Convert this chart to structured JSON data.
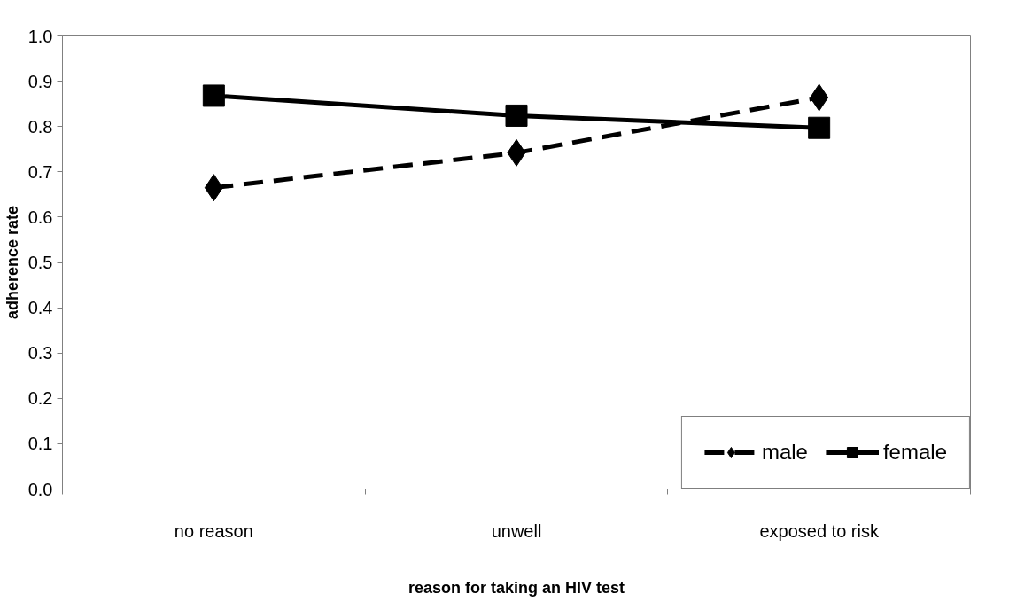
{
  "chart_data": {
    "type": "line",
    "xlabel": "reason for taking an HIV test",
    "ylabel": "adherence rate",
    "categories": [
      "no reason",
      "unwell",
      "exposed to risk"
    ],
    "series": [
      {
        "name": "male",
        "color": "#000000",
        "values": [
          0.665,
          0.742,
          0.864
        ],
        "marker": "diamond",
        "line_style": "dashed"
      },
      {
        "name": "female",
        "color": "#000000",
        "values": [
          0.868,
          0.824,
          0.797
        ],
        "marker": "square",
        "line_style": "solid"
      }
    ],
    "ylim": [
      0.0,
      1.0
    ],
    "yticks": [
      {
        "value": 0,
        "label": "0.0"
      },
      0.1,
      0.2,
      0.3,
      0.4,
      0.5,
      0.6,
      0.7,
      0.8,
      0.9,
      {
        "value": 1,
        "label": "1.0"
      }
    ],
    "grid": false,
    "legend": "bottom right"
  }
}
